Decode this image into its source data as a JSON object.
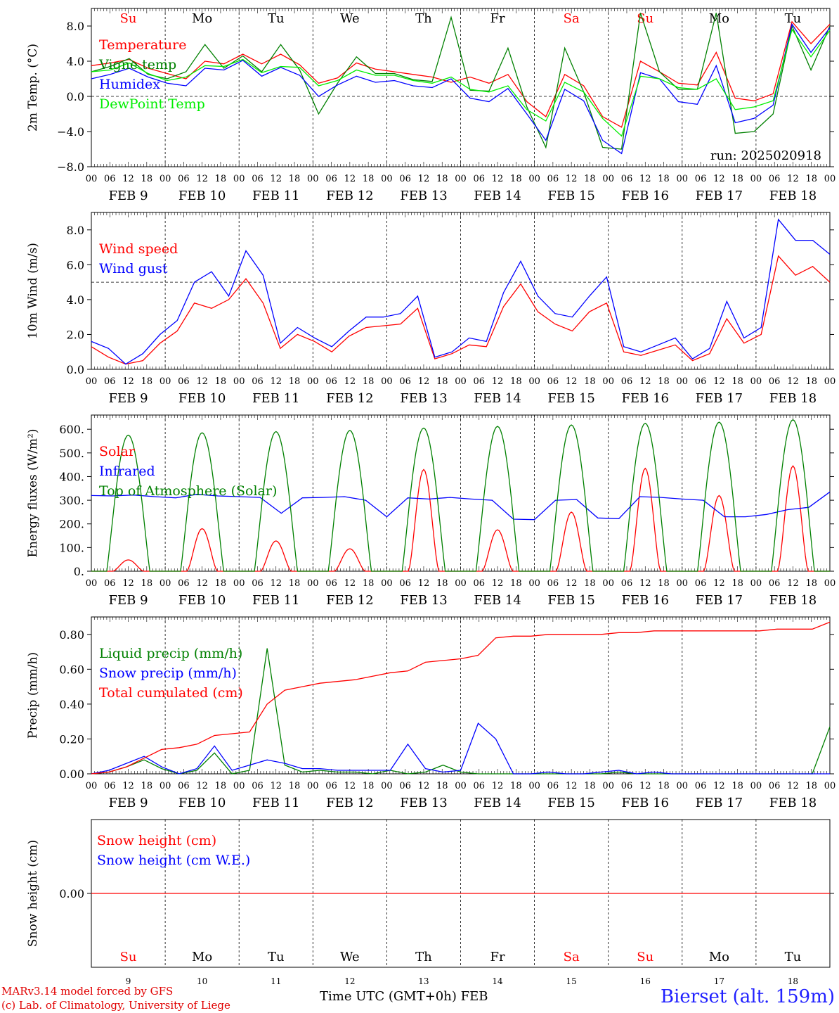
{
  "days": [
    {
      "dow": "Su",
      "date": "FEB  9",
      "num": "9",
      "weekend": true
    },
    {
      "dow": "Mo",
      "date": "FEB 10",
      "num": "10",
      "weekend": false
    },
    {
      "dow": "Tu",
      "date": "FEB 11",
      "num": "11",
      "weekend": false
    },
    {
      "dow": "We",
      "date": "FEB 12",
      "num": "12",
      "weekend": false
    },
    {
      "dow": "Th",
      "date": "FEB 13",
      "num": "13",
      "weekend": false
    },
    {
      "dow": "Fr",
      "date": "FEB 14",
      "num": "14",
      "weekend": false
    },
    {
      "dow": "Sa",
      "date": "FEB 15",
      "num": "15",
      "weekend": true
    },
    {
      "dow": "Su",
      "date": "FEB 16",
      "num": "16",
      "weekend": true
    },
    {
      "dow": "Mo",
      "date": "FEB 17",
      "num": "17",
      "weekend": false
    },
    {
      "dow": "Tu",
      "date": "FEB 18",
      "num": "18",
      "weekend": false
    }
  ],
  "hour_ticks": [
    "00",
    "06",
    "12",
    "18"
  ],
  "colors": {
    "red": "#ff0000",
    "green": "#008000",
    "blue": "#0000ff",
    "lightgreen": "#00ee00",
    "weekend": "#ff0000",
    "axis": "#000000"
  },
  "chart_data": [
    {
      "type": "line",
      "ylabel": "2m Temp. (°C)",
      "ylim": [
        -8,
        10
      ],
      "yticks": [
        "8.0",
        "4.0",
        "0.0",
        "−4.0",
        "−8.0"
      ],
      "ytick_values": [
        8,
        4,
        0,
        -4,
        -8
      ],
      "hline": 0,
      "show_dow": true,
      "annotation": "run: 2025020918",
      "x": "hours from FEB 9 00 UTC, 6-hourly steps",
      "series": [
        {
          "name": "Temperature",
          "color": "red",
          "values": [
            3.5,
            3.8,
            4.2,
            3.2,
            2.6,
            2.0,
            4.0,
            3.7,
            4.8,
            3.7,
            4.8,
            3.6,
            1.5,
            2.1,
            3.8,
            3.1,
            2.8,
            2.5,
            2.2,
            1.6,
            2.2,
            1.5,
            2.5,
            -0.6,
            -2.3,
            2.5,
            1.2,
            -2.3,
            -3.5,
            4.0,
            2.8,
            1.5,
            1.3,
            5.0,
            -0.2,
            -0.5,
            0.3,
            8.5,
            6.0,
            8.2
          ]
        },
        {
          "name": "Vigne temp",
          "color": "green",
          "values": [
            2.8,
            3.4,
            4.3,
            2.5,
            2.0,
            2.8,
            5.9,
            3.2,
            4.6,
            2.8,
            5.9,
            3.0,
            -2.0,
            1.5,
            4.5,
            2.6,
            2.6,
            1.9,
            1.7,
            9.0,
            0.7,
            0.6,
            5.5,
            -1.2,
            -5.8,
            5.5,
            0.5,
            -5.8,
            -6.0,
            9.5,
            2.8,
            0.8,
            0.8,
            9.5,
            -4.2,
            -4.0,
            -2.0,
            8.0,
            3.0,
            8.0
          ]
        },
        {
          "name": "Humidex",
          "color": "blue",
          "values": [
            2.0,
            2.5,
            3.2,
            2.2,
            1.5,
            1.2,
            3.2,
            3.0,
            4.1,
            2.3,
            3.3,
            2.4,
            0.0,
            1.3,
            2.3,
            1.6,
            1.8,
            1.2,
            1.0,
            2.0,
            -0.2,
            -0.6,
            0.9,
            -2.0,
            -5.0,
            0.8,
            -0.5,
            -5.0,
            -6.5,
            2.7,
            2.0,
            -0.6,
            -0.9,
            3.5,
            -3.0,
            -2.5,
            -1.0,
            8.2,
            5.0,
            7.8
          ]
        },
        {
          "name": "DewPoint Temp",
          "color": "lightgreen",
          "values": [
            2.8,
            3.0,
            3.8,
            2.6,
            1.8,
            2.2,
            3.5,
            3.4,
            4.2,
            2.7,
            3.4,
            3.3,
            1.2,
            1.8,
            3.0,
            2.4,
            2.4,
            1.8,
            1.5,
            2.2,
            0.8,
            0.5,
            1.2,
            -1.5,
            -2.8,
            1.6,
            0.5,
            -2.5,
            -4.5,
            2.3,
            2.0,
            1.0,
            0.8,
            2.0,
            -1.5,
            -1.2,
            -0.5,
            7.6,
            4.5,
            7.5
          ]
        }
      ]
    },
    {
      "type": "line",
      "ylabel": "10m Wind (m/s)",
      "ylim": [
        0,
        9
      ],
      "yticks": [
        "8.0",
        "6.0",
        "4.0",
        "2.0",
        "0.0"
      ],
      "ytick_values": [
        8,
        6,
        4,
        2,
        0
      ],
      "hline": 5,
      "show_dow": false,
      "x": "hours from FEB 9 00 UTC, 6-hourly steps",
      "series": [
        {
          "name": "Wind speed",
          "color": "red",
          "values": [
            1.3,
            0.7,
            0.3,
            0.5,
            1.5,
            2.2,
            3.8,
            3.5,
            4.0,
            5.2,
            3.8,
            1.2,
            2.0,
            1.6,
            1.0,
            1.9,
            2.4,
            2.5,
            2.6,
            3.5,
            0.6,
            0.9,
            1.4,
            1.3,
            3.6,
            4.9,
            3.3,
            2.6,
            2.2,
            3.3,
            3.8,
            1.0,
            0.8,
            1.1,
            1.4,
            0.5,
            0.9,
            2.9,
            1.5,
            2.0,
            6.5,
            5.4,
            5.9,
            5.0
          ]
        },
        {
          "name": "Wind gust",
          "color": "blue",
          "values": [
            1.6,
            1.2,
            0.3,
            0.9,
            2.0,
            2.8,
            5.0,
            5.6,
            4.2,
            6.8,
            5.4,
            1.5,
            2.4,
            1.8,
            1.3,
            2.2,
            3.0,
            3.0,
            3.2,
            4.2,
            0.7,
            1.0,
            1.8,
            1.6,
            4.4,
            6.2,
            4.2,
            3.2,
            3.0,
            4.2,
            5.3,
            1.3,
            1.0,
            1.4,
            1.8,
            0.6,
            1.2,
            3.9,
            1.8,
            2.4,
            8.6,
            7.4,
            7.4,
            6.6
          ]
        }
      ]
    },
    {
      "type": "line",
      "ylabel": "Energy fluxes (W/m²)",
      "ylim": [
        0,
        660
      ],
      "yticks": [
        "600.",
        "500.",
        "400.",
        "300.",
        "200.",
        "100.",
        "0."
      ],
      "ytick_values": [
        600,
        500,
        400,
        300,
        200,
        100,
        0
      ],
      "hline": null,
      "show_dow": false,
      "x": "hours from FEB 9 00 UTC",
      "series": [
        {
          "name": "Solar",
          "color": "red",
          "solar_peaks": [
            48,
            180,
            128,
            95,
            430,
            175,
            250,
            435,
            320,
            445
          ]
        },
        {
          "name": "Infrared",
          "color": "blue",
          "values": [
            320,
            318,
            322,
            315,
            310,
            325,
            318,
            315,
            312,
            245,
            310,
            312,
            315,
            300,
            230,
            310,
            305,
            312,
            305,
            300,
            220,
            218,
            300,
            303,
            225,
            222,
            315,
            312,
            305,
            300,
            230,
            230,
            240,
            260,
            270,
            335
          ]
        },
        {
          "name": "Top of Atmosphere (Solar)",
          "color": "green",
          "solar_peaks": [
            575,
            585,
            590,
            595,
            605,
            612,
            618,
            625,
            630,
            640
          ]
        }
      ]
    },
    {
      "type": "line",
      "ylabel": "Precip (mm/h)",
      "ylim": [
        0,
        0.9
      ],
      "yticks": [
        "0.80",
        "0.60",
        "0.40",
        "0.20",
        "0.00"
      ],
      "ytick_values": [
        0.8,
        0.6,
        0.4,
        0.2,
        0
      ],
      "hline": null,
      "show_dow": false,
      "x": "hours from FEB 9 00 UTC, 6-hourly steps",
      "series": [
        {
          "name": "Liquid precip (mm/h)",
          "color": "green",
          "values": [
            0,
            0.01,
            0.04,
            0.08,
            0.03,
            0,
            0.02,
            0.12,
            0,
            0.02,
            0.72,
            0.05,
            0.01,
            0.02,
            0.01,
            0.01,
            0,
            0.02,
            0,
            0.01,
            0.05,
            0.01,
            0,
            0,
            0,
            0,
            0,
            0,
            0,
            0,
            0.01,
            0,
            0,
            0,
            0,
            0,
            0,
            0,
            0,
            0,
            0,
            0,
            0.27
          ]
        },
        {
          "name": "Snow precip (mm/h)",
          "color": "blue",
          "values": [
            0,
            0.02,
            0.06,
            0.1,
            0.04,
            0,
            0.03,
            0.16,
            0.02,
            0.05,
            0.08,
            0.06,
            0.03,
            0.03,
            0.02,
            0.02,
            0.02,
            0.02,
            0.17,
            0.03,
            0.01,
            0.02,
            0.29,
            0.2,
            0,
            0,
            0.01,
            0,
            0,
            0.01,
            0.02,
            0,
            0.01,
            0,
            0,
            0,
            0,
            0,
            0,
            0,
            0,
            0,
            0
          ]
        },
        {
          "name": "Total cumulated (cm)",
          "color": "red",
          "values": [
            0,
            0.01,
            0.04,
            0.09,
            0.14,
            0.15,
            0.17,
            0.22,
            0.23,
            0.24,
            0.4,
            0.48,
            0.5,
            0.52,
            0.53,
            0.54,
            0.56,
            0.58,
            0.59,
            0.64,
            0.65,
            0.66,
            0.68,
            0.78,
            0.79,
            0.79,
            0.8,
            0.8,
            0.8,
            0.8,
            0.81,
            0.81,
            0.82,
            0.82,
            0.82,
            0.82,
            0.82,
            0.82,
            0.82,
            0.83,
            0.83,
            0.83,
            0.87
          ]
        }
      ]
    },
    {
      "type": "line",
      "ylabel": "Snow height (cm)",
      "ylim": [
        -1,
        1
      ],
      "yticks": [
        "0.00"
      ],
      "ytick_values": [
        0
      ],
      "hline": null,
      "show_dow": false,
      "bottom_dow": true,
      "x": "hours from FEB 9 00 UTC, 6-hourly steps",
      "series": [
        {
          "name": "Snow height (cm)",
          "color": "red",
          "values": [
            0,
            0
          ]
        },
        {
          "name": "Snow height (cm W.E.)",
          "color": "blue",
          "values": []
        }
      ]
    }
  ],
  "footer": {
    "credit1": "MARv3.14 model forced by GFS",
    "credit2": "(c) Lab. of Climatology, University of Liege",
    "xtitle": "Time UTC (GMT+0h) FEB",
    "station": "Bierset (alt. 159m)"
  }
}
